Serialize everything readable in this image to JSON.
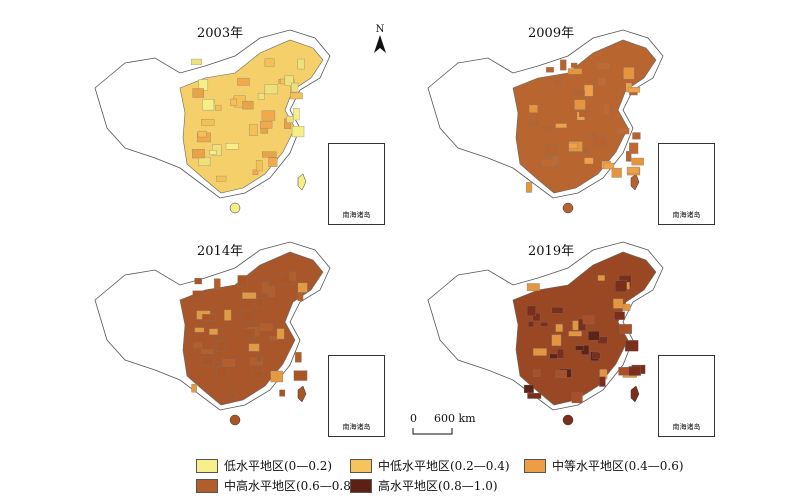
{
  "panels": [
    {
      "year": "2003年",
      "fill": [
        "#F6EE86",
        "#F5C157",
        "#F2A94C",
        "#EFE07A",
        "#E8A346"
      ],
      "dominant": "#F4CF6A"
    },
    {
      "year": "2009年",
      "fill": [
        "#B8632E",
        "#E6953F",
        "#C06A33",
        "#F0A04A"
      ],
      "dominant": "#B9652F"
    },
    {
      "year": "2014年",
      "fill": [
        "#A95526",
        "#B65E2A",
        "#E39A45"
      ],
      "dominant": "#A8562A"
    },
    {
      "year": "2019年",
      "fill": [
        "#7A2E1B",
        "#A8502A",
        "#5E2216",
        "#E39642"
      ],
      "dominant": "#9A4823"
    }
  ],
  "north_label": "N",
  "inset_label": "南海诸岛",
  "scale": {
    "start": "0",
    "end": "600 km"
  },
  "legend": [
    {
      "label": "低水平地区(0—0.2)",
      "color": "#F7F08A"
    },
    {
      "label": "中低水平地区(0.2—0.4)",
      "color": "#F5C45F"
    },
    {
      "label": "中等水平地区(0.4—0.6)",
      "color": "#EE9D46"
    },
    {
      "label": "中高水平地区(0.6—0.8)",
      "color": "#B25E2C"
    },
    {
      "label": "高水平地区(0.8—1.0)",
      "color": "#5C2016"
    }
  ]
}
